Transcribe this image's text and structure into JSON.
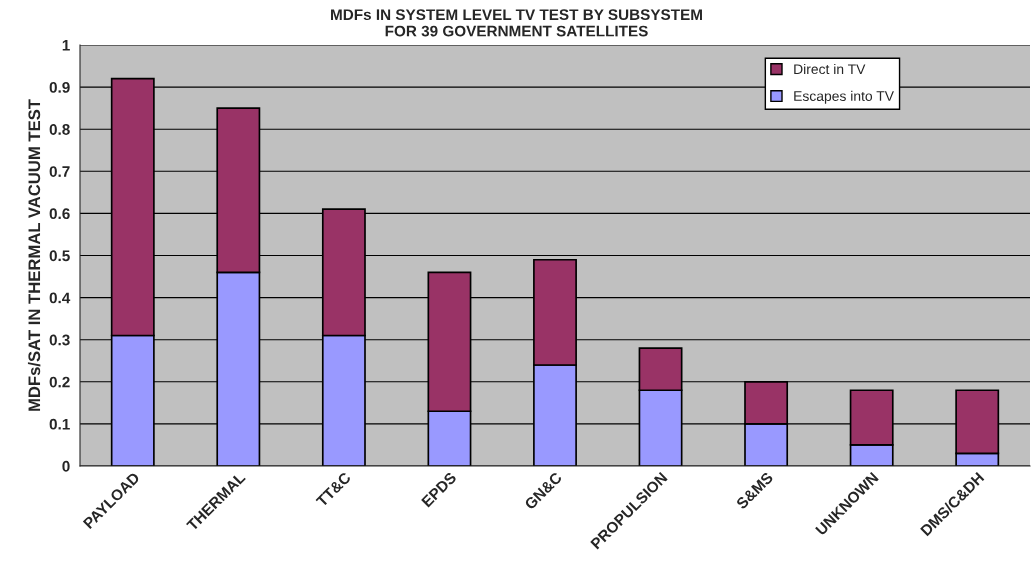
{
  "chart_data": {
    "type": "bar",
    "title": "MDFs IN SYSTEM LEVEL TV TEST BY SUBSYSTEM\nFOR 39 GOVERNMENT SATELLITES",
    "ylabel": "MDFs/SAT IN THERMAL VACUUM TEST",
    "categories": [
      "PAYLOAD",
      "THERMAL",
      "TT&C",
      "EPDS",
      "GN&C",
      "PROPULSION",
      "S&MS",
      "UNKNOWN",
      "DMS/C&DH"
    ],
    "stacked": true,
    "series": [
      {
        "name": "Escapes into TV",
        "color": "#9999ff",
        "values": [
          0.31,
          0.46,
          0.31,
          0.13,
          0.24,
          0.18,
          0.1,
          0.05,
          0.03
        ]
      },
      {
        "name": "Direct in TV",
        "color": "#993366",
        "values": [
          0.61,
          0.39,
          0.3,
          0.33,
          0.25,
          0.1,
          0.1,
          0.13,
          0.15
        ]
      }
    ],
    "ylim": [
      0,
      1
    ],
    "yticks": [
      0,
      0.1,
      0.2,
      0.3,
      0.4,
      0.5,
      0.6,
      0.7,
      0.8,
      0.9,
      1
    ],
    "grid": "y",
    "legend": "top right"
  }
}
